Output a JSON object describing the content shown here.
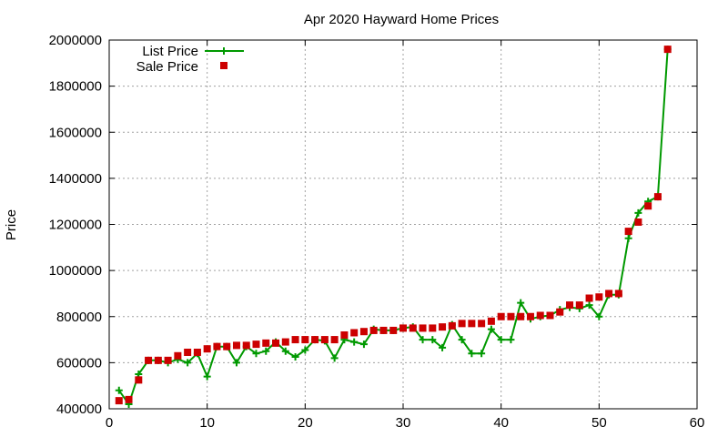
{
  "chart_data": {
    "type": "line",
    "title": "Apr 2020 Hayward Home Prices",
    "xlabel": "",
    "ylabel": "Price",
    "xlim": [
      0,
      60
    ],
    "ylim": [
      400000,
      2000000
    ],
    "xticks": [
      0,
      10,
      20,
      30,
      40,
      50,
      60
    ],
    "yticks": [
      400000,
      600000,
      800000,
      1000000,
      1200000,
      1400000,
      1600000,
      1800000,
      2000000
    ],
    "grid": true,
    "legend_position": "top-left",
    "x": [
      1,
      2,
      3,
      4,
      5,
      6,
      7,
      8,
      9,
      10,
      11,
      12,
      13,
      14,
      15,
      16,
      17,
      18,
      19,
      20,
      21,
      22,
      23,
      24,
      25,
      26,
      27,
      28,
      29,
      30,
      31,
      32,
      33,
      34,
      35,
      36,
      37,
      38,
      39,
      40,
      41,
      42,
      43,
      44,
      45,
      46,
      47,
      48,
      49,
      50,
      51,
      52,
      53,
      54,
      55,
      56,
      57
    ],
    "series": [
      {
        "name": "List Price",
        "style": "line+plus",
        "color": "#009900",
        "values": [
          480000,
          420000,
          550000,
          610000,
          610000,
          600000,
          615000,
          600000,
          640000,
          540000,
          670000,
          670000,
          600000,
          670000,
          640000,
          650000,
          690000,
          650000,
          625000,
          655000,
          700000,
          695000,
          620000,
          700000,
          690000,
          680000,
          745000,
          740000,
          740000,
          750000,
          755000,
          700000,
          700000,
          665000,
          765000,
          700000,
          640000,
          640000,
          745000,
          700000,
          700000,
          860000,
          790000,
          800000,
          805000,
          830000,
          840000,
          835000,
          850000,
          800000,
          895000,
          895000,
          1140000,
          1250000,
          1300000,
          1320000,
          1960000
        ]
      },
      {
        "name": "Sale Price",
        "style": "square",
        "color": "#cc0000",
        "values": [
          435000,
          440000,
          525000,
          610000,
          610000,
          610000,
          630000,
          645000,
          645000,
          660000,
          670000,
          670000,
          675000,
          675000,
          680000,
          685000,
          685000,
          690000,
          700000,
          700000,
          700000,
          700000,
          700000,
          720000,
          730000,
          735000,
          740000,
          740000,
          740000,
          750000,
          750000,
          750000,
          750000,
          755000,
          760000,
          770000,
          770000,
          770000,
          780000,
          800000,
          800000,
          800000,
          800000,
          805000,
          805000,
          820000,
          850000,
          850000,
          880000,
          885000,
          900000,
          900000,
          1170000,
          1210000,
          1280000,
          1320000,
          1960000
        ]
      }
    ]
  }
}
